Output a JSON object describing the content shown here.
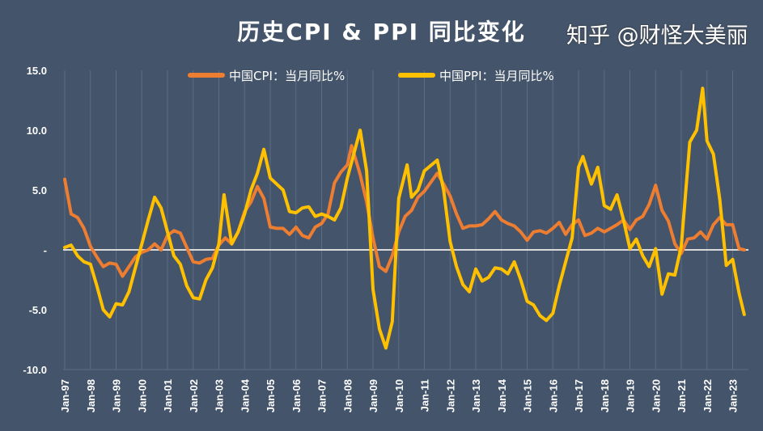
{
  "chart_data": {
    "type": "line",
    "title": "历史CPI & PPI 同比变化",
    "ylim": [
      -10,
      15
    ],
    "yticks": [
      15,
      10,
      5,
      0,
      -5,
      -10
    ],
    "ytick_labels": [
      "15.0",
      "10.0",
      "5.0",
      "-",
      "-5.0",
      "-10.0"
    ],
    "xlim": [
      "1997-01",
      "2023-06"
    ],
    "xtick_labels": [
      "Jan-97",
      "Jan-98",
      "Jan-99",
      "Jan-00",
      "Jan-01",
      "Jan-02",
      "Jan-03",
      "Jan-04",
      "Jan-05",
      "Jan-06",
      "Jan-07",
      "Jan-08",
      "Jan-09",
      "Jan-10",
      "Jan-11",
      "Jan-12",
      "Jan-13",
      "Jan-14",
      "Jan-15",
      "Jan-16",
      "Jan-17",
      "Jan-18",
      "Jan-19",
      "Jan-20",
      "Jan-21",
      "Jan-22",
      "Jan-23"
    ],
    "grid": "vertical",
    "legend_position": "top",
    "series": [
      {
        "name": "中国CPI：当月同比%",
        "color": "#ed7d31",
        "x": [
          1997.0,
          1997.25,
          1997.5,
          1997.75,
          1998.0,
          1998.25,
          1998.5,
          1998.75,
          1999.0,
          1999.25,
          1999.5,
          1999.75,
          2000.0,
          2000.25,
          2000.5,
          2000.75,
          2001.0,
          2001.25,
          2001.5,
          2001.75,
          2002.0,
          2002.25,
          2002.5,
          2002.75,
          2003.0,
          2003.25,
          2003.5,
          2003.75,
          2004.0,
          2004.25,
          2004.5,
          2004.75,
          2005.0,
          2005.25,
          2005.5,
          2005.75,
          2006.0,
          2006.25,
          2006.5,
          2006.75,
          2007.0,
          2007.25,
          2007.5,
          2007.75,
          2008.0,
          2008.17,
          2008.5,
          2008.75,
          2009.0,
          2009.25,
          2009.5,
          2009.75,
          2010.0,
          2010.25,
          2010.5,
          2010.75,
          2011.0,
          2011.5,
          2011.75,
          2012.0,
          2012.25,
          2012.5,
          2012.75,
          2013.0,
          2013.25,
          2013.5,
          2013.75,
          2014.0,
          2014.25,
          2014.5,
          2014.75,
          2015.0,
          2015.25,
          2015.5,
          2015.75,
          2016.0,
          2016.25,
          2016.5,
          2016.75,
          2017.0,
          2017.25,
          2017.5,
          2017.75,
          2018.0,
          2018.25,
          2018.5,
          2018.75,
          2019.0,
          2019.25,
          2019.5,
          2019.75,
          2020.0,
          2020.25,
          2020.5,
          2020.75,
          2021.0,
          2021.25,
          2021.5,
          2021.75,
          2022.0,
          2022.25,
          2022.5,
          2022.75,
          2023.0,
          2023.25,
          2023.45
        ],
        "values": [
          5.9,
          3.0,
          2.7,
          1.8,
          0.3,
          -0.6,
          -1.4,
          -1.1,
          -1.2,
          -2.2,
          -1.4,
          -0.6,
          -0.2,
          0.0,
          0.5,
          0.0,
          1.2,
          1.6,
          1.4,
          0.2,
          -1.0,
          -1.1,
          -0.8,
          -0.7,
          0.4,
          1.0,
          0.5,
          1.5,
          3.2,
          4.0,
          5.3,
          4.3,
          1.9,
          1.8,
          1.8,
          1.3,
          1.9,
          1.2,
          1.0,
          1.9,
          2.2,
          3.0,
          5.6,
          6.5,
          7.1,
          8.7,
          6.3,
          4.0,
          1.0,
          -1.4,
          -1.8,
          -0.5,
          1.5,
          2.8,
          3.3,
          4.4,
          4.9,
          6.4,
          5.5,
          4.5,
          3.0,
          1.8,
          2.0,
          2.0,
          2.1,
          2.6,
          3.2,
          2.5,
          2.2,
          2.0,
          1.5,
          0.8,
          1.5,
          1.6,
          1.4,
          1.8,
          2.3,
          1.3,
          2.1,
          2.5,
          1.2,
          1.4,
          1.8,
          1.5,
          1.8,
          2.1,
          2.5,
          1.7,
          2.5,
          2.8,
          3.8,
          5.4,
          3.3,
          2.4,
          0.5,
          -0.3,
          0.9,
          1.0,
          1.5,
          0.9,
          2.1,
          2.7,
          2.1,
          2.1,
          0.1,
          0.0
        ]
      },
      {
        "name": "中国PPI：当月同比%",
        "color": "#ffc000",
        "x": [
          1997.0,
          1997.25,
          1997.5,
          1997.75,
          1998.0,
          1998.25,
          1998.5,
          1998.75,
          1999.0,
          1999.25,
          1999.5,
          1999.75,
          2000.0,
          2000.25,
          2000.5,
          2000.75,
          2001.0,
          2001.25,
          2001.5,
          2001.75,
          2002.0,
          2002.25,
          2002.5,
          2002.75,
          2003.0,
          2003.2,
          2003.5,
          2003.75,
          2004.0,
          2004.25,
          2004.5,
          2004.75,
          2005.0,
          2005.25,
          2005.5,
          2005.75,
          2006.0,
          2006.25,
          2006.5,
          2006.75,
          2007.0,
          2007.25,
          2007.5,
          2007.75,
          2008.0,
          2008.5,
          2008.75,
          2009.0,
          2009.25,
          2009.5,
          2009.75,
          2010.0,
          2010.33,
          2010.5,
          2010.75,
          2011.0,
          2011.5,
          2011.75,
          2012.0,
          2012.25,
          2012.5,
          2012.75,
          2013.0,
          2013.25,
          2013.5,
          2013.75,
          2014.0,
          2014.25,
          2014.5,
          2014.75,
          2015.0,
          2015.25,
          2015.5,
          2015.75,
          2016.0,
          2016.25,
          2016.5,
          2016.75,
          2017.0,
          2017.17,
          2017.5,
          2017.75,
          2018.0,
          2018.25,
          2018.5,
          2018.75,
          2019.0,
          2019.25,
          2019.5,
          2019.75,
          2020.0,
          2020.25,
          2020.5,
          2020.75,
          2021.0,
          2021.33,
          2021.6,
          2021.83,
          2022.0,
          2022.25,
          2022.5,
          2022.75,
          2023.0,
          2023.25,
          2023.45
        ],
        "values": [
          0.2,
          0.4,
          -0.5,
          -1.0,
          -1.2,
          -3.0,
          -5.0,
          -5.6,
          -4.5,
          -4.6,
          -3.5,
          -1.5,
          0.5,
          2.5,
          4.4,
          3.5,
          1.5,
          -0.5,
          -1.2,
          -3.0,
          -4.0,
          -4.1,
          -2.5,
          -1.5,
          0.5,
          4.6,
          0.5,
          1.5,
          3.0,
          5.0,
          6.4,
          8.4,
          6.0,
          5.5,
          5.0,
          3.2,
          3.1,
          3.5,
          3.6,
          2.8,
          3.0,
          2.8,
          2.5,
          3.5,
          6.0,
          10.0,
          6.6,
          -3.3,
          -6.6,
          -8.2,
          -6.0,
          4.3,
          7.1,
          4.4,
          5.0,
          6.6,
          7.5,
          5.0,
          0.7,
          -1.4,
          -2.9,
          -3.5,
          -1.6,
          -2.6,
          -2.3,
          -1.5,
          -1.6,
          -2.0,
          -1.0,
          -2.5,
          -4.3,
          -4.6,
          -5.5,
          -5.9,
          -5.3,
          -3.0,
          -1.0,
          1.0,
          6.9,
          7.8,
          5.5,
          6.9,
          3.7,
          3.4,
          4.6,
          2.5,
          0.1,
          0.9,
          -0.5,
          -1.4,
          0.1,
          -3.7,
          -2.0,
          -2.1,
          0.3,
          9.0,
          10.0,
          13.5,
          9.1,
          8.0,
          4.2,
          -1.3,
          -0.8,
          -3.6,
          -5.4
        ]
      }
    ]
  },
  "watermark": "知乎 @财怪大美丽"
}
